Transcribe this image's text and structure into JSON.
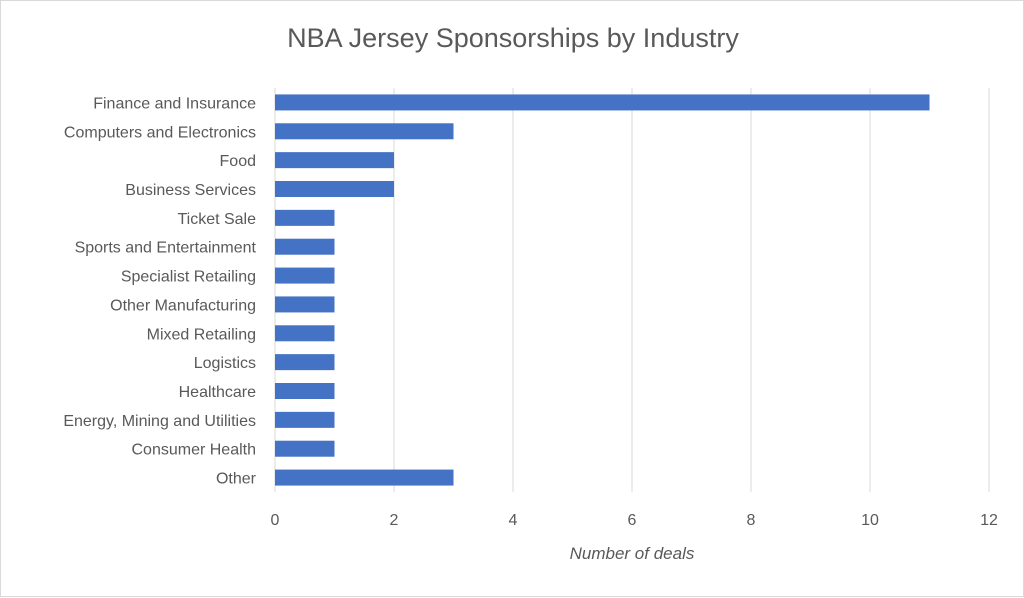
{
  "chart_data": {
    "type": "bar",
    "orientation": "horizontal",
    "title": "NBA Jersey Sponsorships by Industry",
    "xlabel": "Number of deals",
    "ylabel": "",
    "xlim": [
      0,
      12
    ],
    "xticks": [
      0,
      2,
      4,
      6,
      8,
      10,
      12
    ],
    "grid": true,
    "legend": "none",
    "bar_color": "#4472c4",
    "categories": [
      "Finance and Insurance",
      "Computers and Electronics",
      "Food",
      "Business Services",
      "Ticket Sale",
      "Sports and Entertainment",
      "Specialist Retailing",
      "Other Manufacturing",
      "Mixed Retailing",
      "Logistics",
      "Healthcare",
      "Energy, Mining and Utilities",
      "Consumer Health",
      "Other"
    ],
    "values": [
      11,
      3,
      2,
      2,
      1,
      1,
      1,
      1,
      1,
      1,
      1,
      1,
      1,
      3
    ]
  }
}
